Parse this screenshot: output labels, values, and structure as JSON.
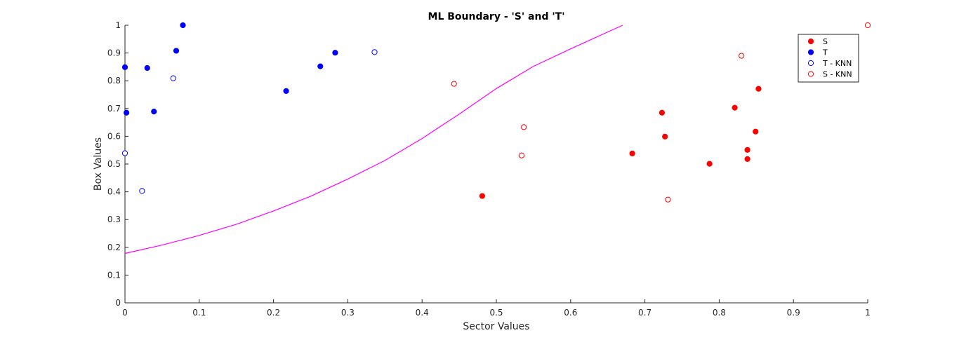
{
  "chart_data": {
    "type": "scatter",
    "title": "ML Boundary - 'S' and 'T'",
    "xlabel": "Sector Values",
    "ylabel": "Box Values",
    "xlim": [
      0,
      1
    ],
    "ylim": [
      0,
      1
    ],
    "xticks": [
      0,
      0.1,
      0.2,
      0.3,
      0.4,
      0.5,
      0.6,
      0.7,
      0.8,
      0.9,
      1
    ],
    "yticks": [
      0,
      0.1,
      0.2,
      0.3,
      0.4,
      0.5,
      0.6,
      0.7,
      0.8,
      0.9,
      1
    ],
    "xtick_labels": [
      "0",
      "0.1",
      "0.2",
      "0.3",
      "0.4",
      "0.5",
      "0.6",
      "0.7",
      "0.8",
      "0.9",
      "1"
    ],
    "ytick_labels": [
      "0",
      "0.1",
      "0.2",
      "0.3",
      "0.4",
      "0.5",
      "0.6",
      "0.7",
      "0.8",
      "0.9",
      "1"
    ],
    "grid": false,
    "legend_position": "top-right",
    "series": [
      {
        "name": "S",
        "marker": "filled",
        "color": "#ff0000",
        "points": [
          [
            0.481,
            0.385
          ],
          [
            0.683,
            0.538
          ],
          [
            0.723,
            0.685
          ],
          [
            0.727,
            0.599
          ],
          [
            0.787,
            0.501
          ],
          [
            0.821,
            0.703
          ],
          [
            0.838,
            0.551
          ],
          [
            0.838,
            0.518
          ],
          [
            0.849,
            0.617
          ],
          [
            0.853,
            0.771
          ]
        ]
      },
      {
        "name": "T",
        "marker": "filled",
        "color": "#0000ff",
        "points": [
          [
            0.0,
            0.849
          ],
          [
            0.002,
            0.685
          ],
          [
            0.03,
            0.846
          ],
          [
            0.039,
            0.689
          ],
          [
            0.069,
            0.908
          ],
          [
            0.078,
            1.0
          ],
          [
            0.217,
            0.763
          ],
          [
            0.263,
            0.852
          ],
          [
            0.283,
            0.901
          ]
        ]
      },
      {
        "name": "T - KNN",
        "marker": "open",
        "color": "#0000ff",
        "points": [
          [
            0.0,
            0.539
          ],
          [
            0.023,
            0.403
          ],
          [
            0.065,
            0.809
          ],
          [
            0.336,
            0.903
          ]
        ]
      },
      {
        "name": "S - KNN",
        "marker": "open",
        "color": "#ff0000",
        "points": [
          [
            0.443,
            0.789
          ],
          [
            0.534,
            0.531
          ],
          [
            0.537,
            0.633
          ],
          [
            0.731,
            0.372
          ],
          [
            0.83,
            0.89
          ],
          [
            1.0,
            1.0
          ]
        ]
      }
    ],
    "boundary": {
      "color": "#ff00ff",
      "points": [
        [
          0.0,
          0.178
        ],
        [
          0.05,
          0.208
        ],
        [
          0.1,
          0.243
        ],
        [
          0.15,
          0.283
        ],
        [
          0.2,
          0.331
        ],
        [
          0.25,
          0.384
        ],
        [
          0.3,
          0.446
        ],
        [
          0.35,
          0.513
        ],
        [
          0.4,
          0.592
        ],
        [
          0.45,
          0.68
        ],
        [
          0.5,
          0.772
        ],
        [
          0.55,
          0.852
        ],
        [
          0.6,
          0.915
        ],
        [
          0.67,
          1.0
        ]
      ]
    }
  }
}
